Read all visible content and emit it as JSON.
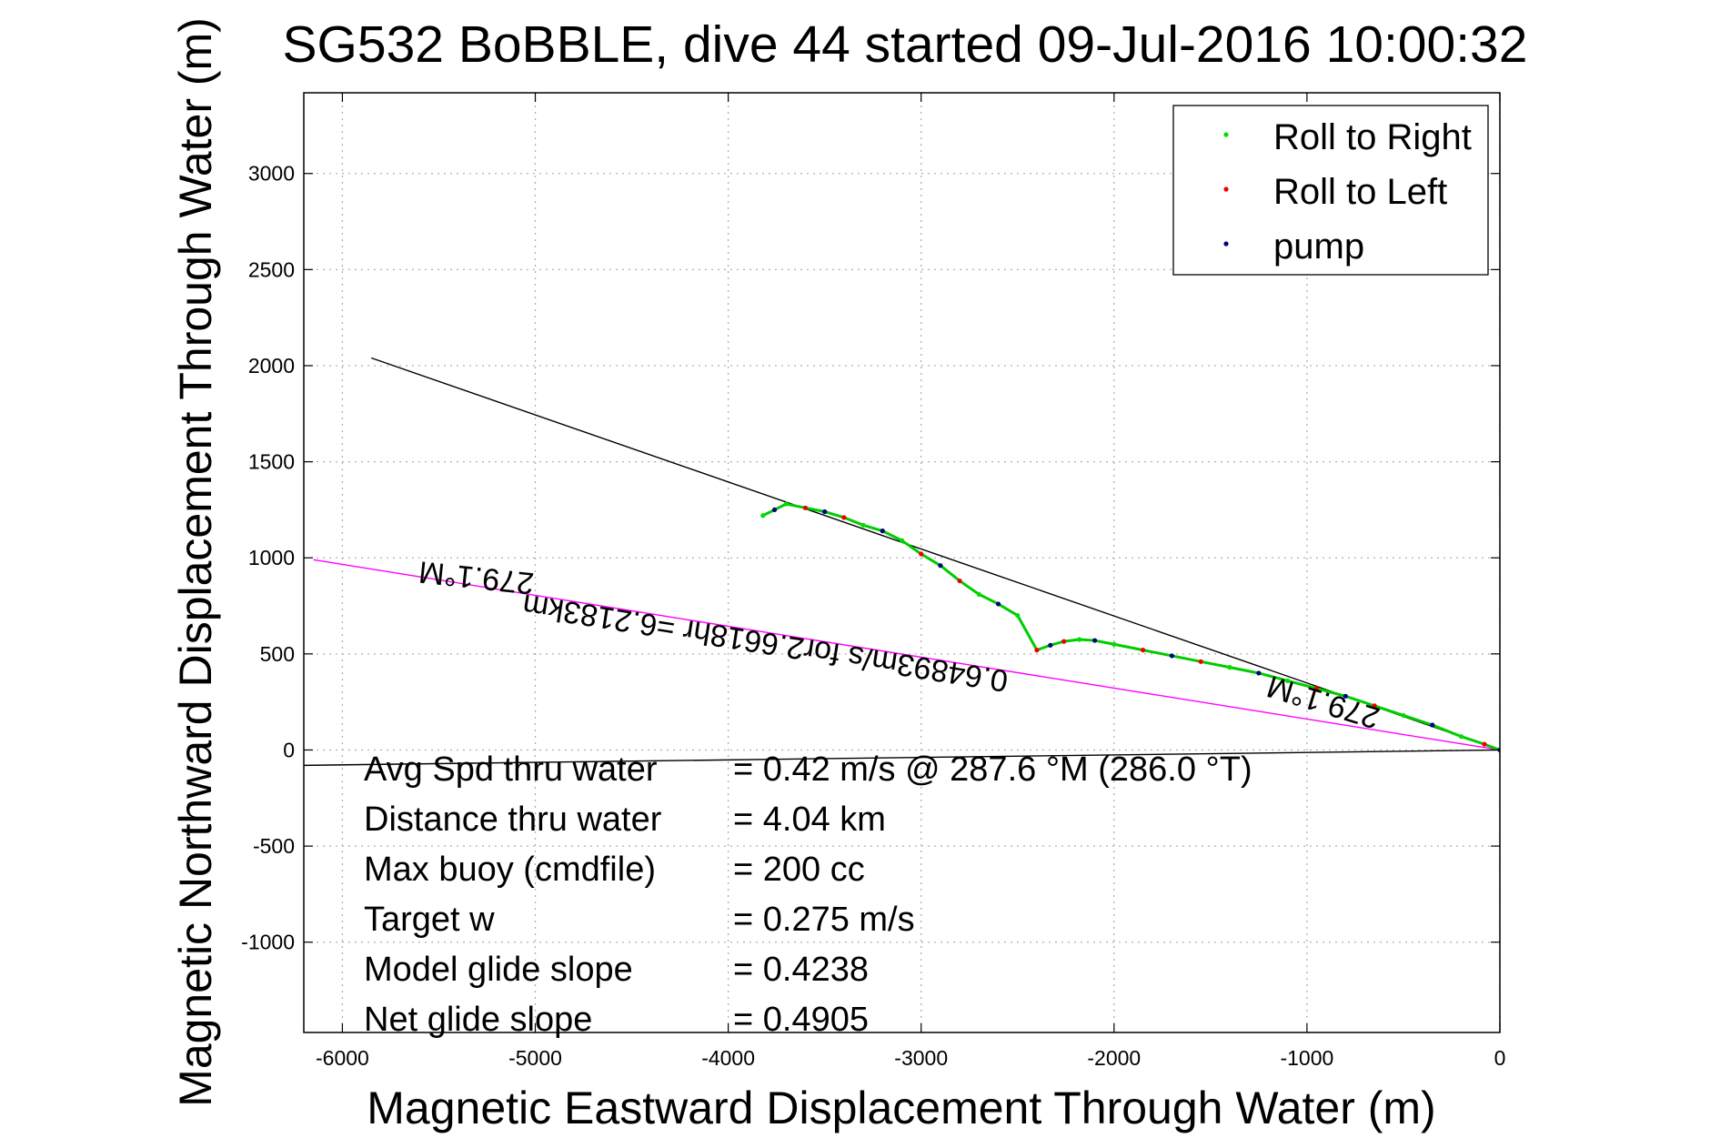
{
  "chart_data": {
    "type": "line",
    "title": "SG532 BoBBLE, dive 44 started 09-Jul-2016 10:00:32",
    "xlabel": "Magnetic Eastward Displacement Through Water (m)",
    "ylabel": "Magnetic Northward Displacement Through Water (m)",
    "xlim": [
      -6200,
      0
    ],
    "ylim": [
      -1470,
      3420
    ],
    "xticks": [
      -6000,
      -5000,
      -4000,
      -3000,
      -2000,
      -1000,
      0
    ],
    "xtick_labels": [
      "-6000",
      "-5000",
      "-4000",
      "-3000",
      "-2000",
      "-1000",
      "0"
    ],
    "yticks": [
      -1000,
      -500,
      0,
      500,
      1000,
      1500,
      2000,
      2500,
      3000
    ],
    "ytick_labels": [
      "-1000",
      "-500",
      "0",
      "500",
      "1000",
      "1500",
      "2000",
      "2500",
      "3000"
    ],
    "grid": true,
    "legend_position": "top-right",
    "legend": [
      {
        "label": "Roll to Right",
        "color": "#00dd00"
      },
      {
        "label": "Roll to Left",
        "color": "#ee0000"
      },
      {
        "label": "pump",
        "color": "#000080"
      }
    ],
    "track": [
      [
        0,
        0
      ],
      [
        -80,
        30
      ],
      [
        -200,
        70
      ],
      [
        -350,
        130
      ],
      [
        -500,
        180
      ],
      [
        -650,
        230
      ],
      [
        -800,
        280
      ],
      [
        -950,
        320
      ],
      [
        -1100,
        360
      ],
      [
        -1250,
        400
      ],
      [
        -1400,
        430
      ],
      [
        -1550,
        460
      ],
      [
        -1700,
        490
      ],
      [
        -1850,
        520
      ],
      [
        -2000,
        550
      ],
      [
        -2100,
        570
      ],
      [
        -2180,
        575
      ],
      [
        -2260,
        565
      ],
      [
        -2330,
        545
      ],
      [
        -2400,
        520
      ],
      [
        -2500,
        700
      ],
      [
        -2600,
        760
      ],
      [
        -2700,
        810
      ],
      [
        -2800,
        880
      ],
      [
        -2900,
        960
      ],
      [
        -3000,
        1020
      ],
      [
        -3100,
        1090
      ],
      [
        -3200,
        1140
      ],
      [
        -3300,
        1170
      ],
      [
        -3400,
        1210
      ],
      [
        -3500,
        1240
      ],
      [
        -3600,
        1260
      ],
      [
        -3700,
        1280
      ],
      [
        -3760,
        1250
      ],
      [
        -3820,
        1220
      ]
    ],
    "lines": [
      {
        "name": "black-heading-line",
        "color": "#000000",
        "points": [
          [
            0,
            0
          ],
          [
            -5850,
            2040
          ]
        ]
      },
      {
        "name": "magenta-average-line",
        "color": "#ff00ff",
        "points": [
          [
            0,
            0
          ],
          [
            -6150,
            990
          ]
        ]
      },
      {
        "name": "black-net-line",
        "color": "#000000",
        "points": [
          [
            0,
            0
          ],
          [
            -6200,
            -80
          ]
        ]
      }
    ],
    "annotations": [
      {
        "name": "heading-annotation-left",
        "text": "279.1°M",
        "x": -5300,
        "y": 950,
        "rotate": 186
      },
      {
        "name": "heading-annotation-right",
        "text": "279.1°M",
        "x": -900,
        "y": 300,
        "rotate": 197
      },
      {
        "name": "speed-annotation",
        "text": "0.64893m/s for2.6618hr =6.2183km",
        "x": -3800,
        "y": 610,
        "rotate": 189
      }
    ],
    "stats": [
      {
        "label": "Avg Spd thru water",
        "value": "=  0.42 m/s @ 287.6 °M (286.0 °T)"
      },
      {
        "label": "Distance thru water",
        "value": "=  4.04 km"
      },
      {
        "label": "Max buoy (cmdfile)",
        "value": "= 200 cc"
      },
      {
        "label": "Target w",
        "value": "= 0.275 m/s"
      },
      {
        "label": "Model glide slope",
        "value": "= 0.4238"
      },
      {
        "label": "Net glide slope",
        "value": "= 0.4905"
      }
    ]
  }
}
